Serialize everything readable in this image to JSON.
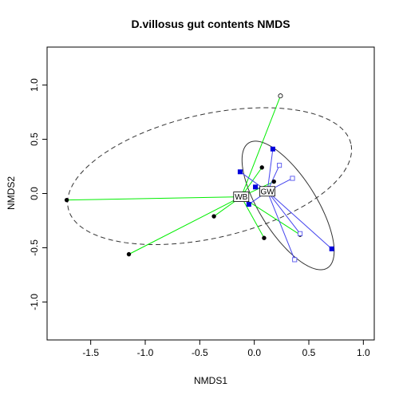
{
  "chart_data": {
    "type": "scatter",
    "title": "D.villosus gut contents NMDS",
    "xlabel": "NMDS1",
    "ylabel": "NMDS2",
    "xlim": [
      -1.9,
      1.1
    ],
    "ylim": [
      -1.35,
      1.35
    ],
    "x_ticks": [
      -1.5,
      -1.0,
      -0.5,
      0.0,
      0.5,
      1.0
    ],
    "y_ticks": [
      -1.0,
      -0.5,
      0.0,
      0.5,
      1.0
    ],
    "x_tick_labels": [
      "-1.5",
      "-1.0",
      "-0.5",
      "0.0",
      "0.5",
      "1.0"
    ],
    "y_tick_labels": [
      "-1.0",
      "-0.5",
      "0.0",
      "0.5",
      "1.0"
    ],
    "grid": false,
    "colors": {
      "WB_spider": "#00ee00",
      "GW_spider": "#4444ee",
      "WB_ellipse": "#333333",
      "GW_ellipse": "#333333",
      "point_dark": "#000000",
      "point_blue": "#0000dd",
      "point_blue_open": "#5555ee"
    },
    "groups": [
      {
        "label": "WB",
        "centroid": [
          -0.12,
          -0.03
        ],
        "points": [
          {
            "x": 0.24,
            "y": 0.9,
            "marker": "circle-open"
          },
          {
            "x": 0.07,
            "y": 0.24,
            "marker": "circle"
          },
          {
            "x": 0.18,
            "y": 0.11,
            "marker": "circle"
          },
          {
            "x": -1.72,
            "y": -0.06,
            "marker": "circle"
          },
          {
            "x": -0.37,
            "y": -0.21,
            "marker": "circle"
          },
          {
            "x": 0.42,
            "y": -0.38,
            "marker": "circle"
          },
          {
            "x": 0.09,
            "y": -0.41,
            "marker": "circle"
          },
          {
            "x": -1.15,
            "y": -0.56,
            "marker": "circle"
          }
        ],
        "ellipse": {
          "cx": -0.41,
          "cy": 0.16,
          "rx": 1.33,
          "ry": 0.57,
          "angle_deg": 13,
          "style": "dashed"
        }
      },
      {
        "label": "GW",
        "centroid": [
          0.12,
          0.02
        ],
        "points": [
          {
            "x": 0.17,
            "y": 0.41,
            "marker": "square"
          },
          {
            "x": 0.23,
            "y": 0.26,
            "marker": "square-open"
          },
          {
            "x": -0.13,
            "y": 0.2,
            "marker": "square"
          },
          {
            "x": 0.35,
            "y": 0.14,
            "marker": "square-open"
          },
          {
            "x": 0.01,
            "y": 0.06,
            "marker": "square"
          },
          {
            "x": -0.05,
            "y": -0.1,
            "marker": "square"
          },
          {
            "x": 0.42,
            "y": -0.37,
            "marker": "square-open"
          },
          {
            "x": 0.71,
            "y": -0.51,
            "marker": "square"
          },
          {
            "x": 0.37,
            "y": -0.61,
            "marker": "square-open"
          }
        ],
        "ellipse": {
          "cx": 0.31,
          "cy": -0.11,
          "rx": 0.68,
          "ry": 0.26,
          "angle_deg": -58,
          "style": "solid"
        }
      }
    ]
  }
}
